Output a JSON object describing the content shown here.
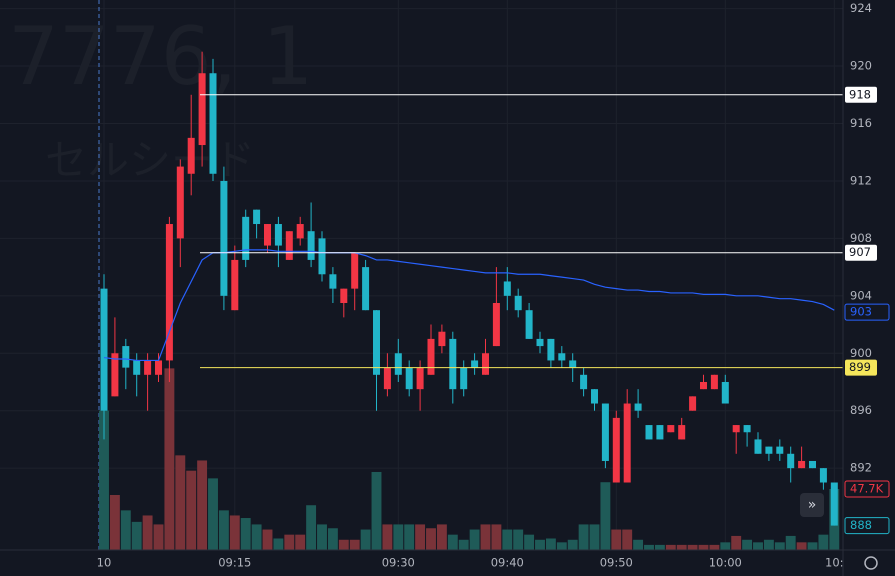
{
  "chart_data": {
    "type": "candlestick",
    "watermark_symbol": "7776, 1",
    "watermark_name": "セルシード",
    "categories": [
      "10",
      null,
      null,
      null,
      null,
      null,
      null,
      null,
      null,
      null,
      null,
      null,
      "09:15",
      null,
      null,
      null,
      null,
      null,
      null,
      null,
      null,
      null,
      null,
      null,
      null,
      null,
      null,
      "09:30",
      null,
      null,
      null,
      null,
      null,
      null,
      null,
      null,
      null,
      "09:40",
      null,
      null,
      null,
      null,
      null,
      null,
      null,
      null,
      null,
      "09:50",
      null,
      null,
      null,
      null,
      null,
      null,
      null,
      null,
      null,
      "10:00",
      null,
      null,
      null,
      null,
      null,
      null,
      null,
      null,
      null,
      "10:"
    ],
    "open": [
      904.5,
      897,
      900.5,
      899.5,
      898.5,
      898.5,
      899.5,
      908,
      912.5,
      914.5,
      919.5,
      912,
      903,
      909.5,
      910,
      907.5,
      909,
      906.5,
      908,
      908.5,
      908,
      905.5,
      903.5,
      904.5,
      906,
      903,
      897.5,
      900,
      899,
      897.5,
      898.5,
      900.5,
      901,
      899,
      899.5,
      898.5,
      900.5,
      905,
      904,
      903,
      901,
      901,
      900,
      899.5,
      898.5,
      897.5,
      896.5,
      891,
      891,
      896.5,
      895,
      895,
      894.5,
      894,
      896,
      897.5,
      897.5,
      898,
      894.5,
      895,
      894,
      893.5,
      893.5,
      893,
      892,
      892.5,
      892,
      891
    ],
    "high": [
      905.5,
      902.5,
      901,
      900,
      900,
      900,
      909.5,
      913.5,
      918,
      921,
      920.5,
      913,
      907.5,
      910,
      910,
      909,
      909.5,
      908.5,
      909.5,
      910.5,
      908.5,
      906,
      904.5,
      907,
      906.5,
      903,
      900,
      901,
      899.5,
      899.5,
      902,
      902,
      901.5,
      899.5,
      900,
      901,
      906,
      906,
      904.5,
      903.5,
      901.5,
      901,
      900.5,
      900,
      899,
      897.5,
      896.5,
      896,
      897.5,
      897.5,
      895,
      895,
      895,
      895.5,
      897,
      898.5,
      898.5,
      898.5,
      895,
      895,
      894.5,
      893.5,
      894,
      893.5,
      893.5,
      892.5,
      892,
      891
    ],
    "low": [
      894,
      897,
      897.5,
      897,
      896,
      898,
      898,
      906,
      911,
      913,
      912,
      903,
      903,
      906,
      908,
      907,
      906,
      906.5,
      907.5,
      906,
      905,
      903.5,
      902.5,
      903,
      903,
      896,
      897,
      898,
      897,
      896,
      898.5,
      900,
      896.5,
      897,
      898.5,
      898.5,
      900.5,
      903,
      902.5,
      901,
      900,
      899,
      899,
      898,
      897,
      896,
      892,
      891,
      891,
      895.5,
      894,
      894,
      894.5,
      894,
      896,
      897.5,
      897.5,
      896.5,
      893,
      893.5,
      893,
      892.5,
      892.5,
      891,
      892,
      892,
      890.5,
      888
    ],
    "close": [
      896,
      900,
      899,
      898.5,
      899.5,
      899.5,
      909,
      913,
      915,
      919.5,
      912.5,
      904,
      906.5,
      906.5,
      909,
      909,
      907.5,
      908.5,
      909,
      906.5,
      905.5,
      904.5,
      904.5,
      907,
      903,
      898.5,
      899,
      898.5,
      897.5,
      899,
      901,
      901.5,
      897.5,
      897.5,
      899,
      900,
      903.5,
      904,
      903,
      901,
      900.5,
      899.5,
      899.5,
      899,
      897.5,
      896.5,
      892.5,
      895.5,
      896.5,
      896,
      894,
      894,
      895,
      895,
      897,
      898,
      898.5,
      896.5,
      895,
      894.5,
      893,
      893,
      893,
      892,
      892.5,
      892,
      891,
      888
    ],
    "volume": [
      109,
      43,
      31,
      22,
      27,
      20,
      142,
      74,
      62,
      70,
      56,
      31,
      27,
      25,
      20,
      16,
      9,
      12,
      12,
      35,
      20,
      17,
      8,
      8,
      16,
      61,
      20,
      20,
      20,
      20,
      17,
      20,
      12,
      8,
      16,
      20,
      20,
      16,
      16,
      12,
      8,
      9,
      6,
      8,
      20,
      20,
      53,
      16,
      16,
      8,
      4,
      4,
      4,
      4,
      4,
      4,
      4,
      6,
      11,
      8,
      6,
      8,
      6,
      11,
      6,
      6,
      12,
      47.7
    ],
    "volume_last_label": "47.7K",
    "up_color": "#f23645",
    "down_color": "#22b5c9",
    "volume_up_color": "#7a3339",
    "volume_down_color": "#1f5b58",
    "vwap": {
      "color": "#2962ff",
      "values": [
        899.7,
        899.6,
        899.6,
        899.5,
        899.5,
        899.5,
        901.5,
        903.5,
        905,
        906.5,
        907,
        907,
        907.1,
        907.2,
        907.2,
        907.2,
        907.1,
        907.1,
        907.1,
        907.1,
        907,
        907,
        907,
        907,
        906.8,
        906.5,
        906.5,
        906.4,
        906.3,
        906.2,
        906.1,
        906,
        905.9,
        905.8,
        905.7,
        905.6,
        905.6,
        905.6,
        905.5,
        905.5,
        905.5,
        905.4,
        905.3,
        905.2,
        905.1,
        904.8,
        904.6,
        904.5,
        904.4,
        904.4,
        904.3,
        904.3,
        904.2,
        904.2,
        904.2,
        904.1,
        904.1,
        904.1,
        904,
        904,
        904,
        903.9,
        903.8,
        903.8,
        903.7,
        903.6,
        903.4,
        903
      ]
    },
    "price_lines": [
      {
        "value": 918,
        "color": "#ffffff"
      },
      {
        "value": 907,
        "color": "#ffffff"
      },
      {
        "value": 899,
        "color": "#f5e65b"
      }
    ],
    "ylim": [
      886.3,
      924.6
    ],
    "yticks": [
      892,
      896,
      900,
      904,
      908,
      912,
      916,
      920,
      924
    ],
    "vol_ylim": [
      0,
      430
    ],
    "grid": true
  }
}
